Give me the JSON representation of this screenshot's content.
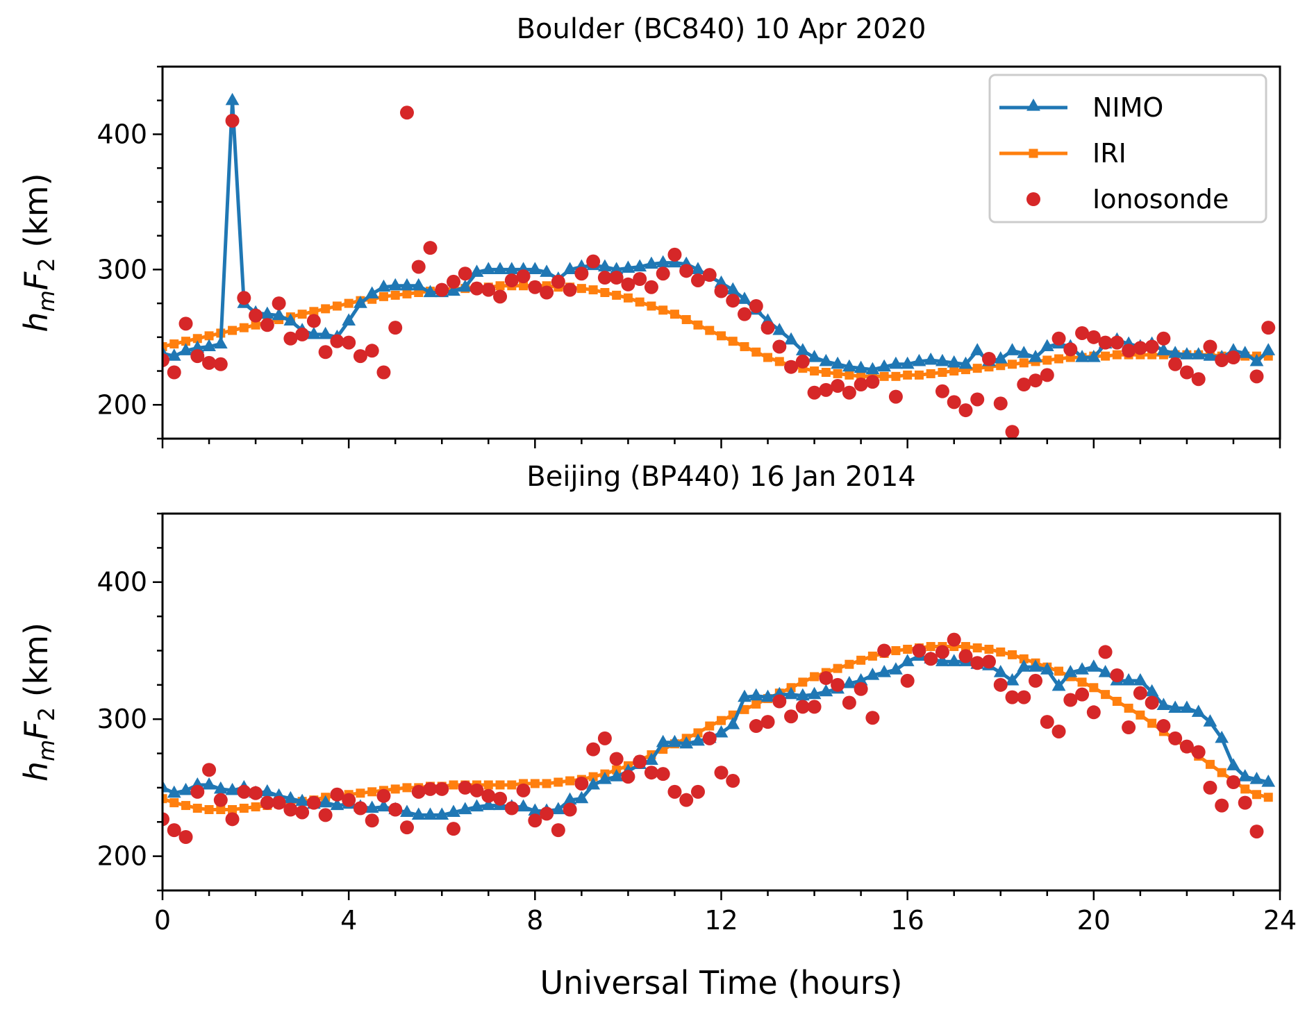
{
  "chart_data": [
    {
      "type": "line",
      "title": "Boulder (BC840) 10 Apr 2020",
      "xlabel": "",
      "ylabel": "h_mF_2 (km)",
      "ylabel_parts": {
        "main": "h",
        "sub1": "m",
        "mid": "F",
        "sub2": "2",
        "unit": " (km)"
      },
      "xlim": [
        0,
        24
      ],
      "ylim": [
        175,
        450
      ],
      "xticks": [
        0,
        4,
        8,
        12,
        16,
        20,
        24
      ],
      "xtick_labels": [
        "",
        "",
        "",
        "",
        "",
        "",
        ""
      ],
      "x_minor_step": 1,
      "yticks": [
        200,
        300,
        400
      ],
      "ytick_labels": [
        "200",
        "300",
        "400"
      ],
      "y_minor_step": 25,
      "grid": false,
      "legend": {
        "placement": "top-right",
        "entries": [
          "NIMO",
          "IRI",
          "Ionosonde"
        ]
      },
      "x_step_hours": 0.25,
      "x_start": 0,
      "series": [
        {
          "name": "NIMO",
          "color": "#1f77b4",
          "marker": "triangle",
          "line": true,
          "values": [
            238,
            236,
            240,
            242,
            243,
            245,
            425,
            275,
            268,
            267,
            266,
            262,
            255,
            252,
            252,
            250,
            262,
            275,
            282,
            287,
            288,
            288,
            288,
            283,
            283,
            284,
            287,
            298,
            300,
            300,
            300,
            300,
            300,
            298,
            293,
            300,
            302,
            303,
            302,
            300,
            301,
            302,
            304,
            305,
            305,
            304,
            300,
            295,
            290,
            285,
            278,
            270,
            262,
            255,
            248,
            240,
            235,
            232,
            230,
            228,
            227,
            226,
            228,
            230,
            230,
            232,
            233,
            232,
            231,
            230,
            240,
            232,
            234,
            240,
            238,
            235,
            243,
            245,
            243,
            235,
            235,
            245,
            248,
            245,
            243,
            245,
            240,
            238,
            237,
            237,
            236,
            235,
            240,
            238,
            232,
            240
          ]
        },
        {
          "name": "IRI",
          "color": "#ff7f0e",
          "marker": "square",
          "line": true,
          "values": [
            243,
            245,
            247,
            249,
            251,
            253,
            255,
            257,
            259,
            261,
            263,
            265,
            267,
            269,
            271,
            273,
            275,
            277,
            278,
            280,
            281,
            282,
            283,
            284,
            285,
            286,
            286,
            287,
            287,
            288,
            288,
            288,
            288,
            288,
            287,
            287,
            286,
            285,
            283,
            281,
            279,
            276,
            273,
            270,
            267,
            263,
            259,
            255,
            251,
            247,
            243,
            239,
            235,
            232,
            229,
            227,
            225,
            224,
            223,
            222,
            221,
            221,
            221,
            221,
            222,
            222,
            223,
            224,
            225,
            226,
            227,
            228,
            229,
            230,
            231,
            232,
            233,
            234,
            235,
            235,
            236,
            236,
            237,
            237,
            237,
            237,
            237,
            237,
            237,
            237,
            237,
            236,
            236,
            236,
            236,
            236
          ]
        },
        {
          "name": "Ionosonde",
          "color": "#d62728",
          "marker": "circle",
          "line": false,
          "values": [
            233,
            224,
            260,
            236,
            231,
            230,
            410,
            279,
            266,
            259,
            275,
            249,
            252,
            262,
            239,
            247,
            246,
            236,
            240,
            224,
            257,
            416,
            302,
            316,
            285,
            291,
            297,
            286,
            285,
            280,
            292,
            295,
            287,
            283,
            291,
            285,
            297,
            306,
            294,
            294,
            289,
            293,
            287,
            297,
            311,
            299,
            292,
            296,
            284,
            277,
            267,
            273,
            257,
            243,
            228,
            232,
            209,
            211,
            214,
            209,
            215,
            217,
            null,
            206,
            null,
            null,
            null,
            210,
            202,
            196,
            204,
            234,
            201,
            180,
            215,
            218,
            222,
            249,
            241,
            253,
            250,
            246,
            246,
            240,
            242,
            243,
            249,
            230,
            224,
            219,
            243,
            233,
            235,
            null,
            221,
            257
          ]
        }
      ]
    },
    {
      "type": "line",
      "title": "Beijing (BP440) 16 Jan 2014",
      "xlabel": "Universal Time (hours)",
      "ylabel": "h_mF_2 (km)",
      "ylabel_parts": {
        "main": "h",
        "sub1": "m",
        "mid": "F",
        "sub2": "2",
        "unit": " (km)"
      },
      "xlim": [
        0,
        24
      ],
      "ylim": [
        175,
        450
      ],
      "xticks": [
        0,
        4,
        8,
        12,
        16,
        20,
        24
      ],
      "xtick_labels": [
        "0",
        "4",
        "8",
        "12",
        "16",
        "20",
        "24"
      ],
      "x_minor_step": 1,
      "yticks": [
        200,
        300,
        400
      ],
      "ytick_labels": [
        "200",
        "300",
        "400"
      ],
      "y_minor_step": 25,
      "grid": false,
      "x_step_hours": 0.25,
      "x_start": 0,
      "series": [
        {
          "name": "NIMO",
          "color": "#1f77b4",
          "marker": "triangle",
          "line": true,
          "values": [
            250,
            246,
            248,
            252,
            252,
            249,
            248,
            250,
            246,
            247,
            244,
            242,
            240,
            238,
            239,
            237,
            238,
            236,
            235,
            236,
            234,
            232,
            230,
            230,
            230,
            232,
            234,
            236,
            237,
            237,
            236,
            236,
            233,
            233,
            234,
            241,
            242,
            252,
            256,
            258,
            262,
            267,
            270,
            283,
            283,
            282,
            284,
            286,
            290,
            296,
            316,
            317,
            316,
            318,
            318,
            317,
            318,
            320,
            322,
            326,
            328,
            332,
            334,
            336,
            342,
            346,
            344,
            342,
            342,
            342,
            340,
            339,
            334,
            328,
            338,
            338,
            336,
            324,
            334,
            336,
            338,
            334,
            328,
            328,
            328,
            320,
            310,
            308,
            308,
            305,
            298,
            286,
            266,
            258,
            256,
            254
          ]
        },
        {
          "name": "IRI",
          "color": "#ff7f0e",
          "marker": "square",
          "line": true,
          "values": [
            242,
            239,
            237,
            235,
            234,
            234,
            234,
            235,
            236,
            237,
            238,
            239,
            240,
            241,
            243,
            244,
            245,
            246,
            247,
            248,
            249,
            250,
            250,
            251,
            251,
            252,
            252,
            252,
            252,
            252,
            252,
            253,
            253,
            253,
            254,
            255,
            256,
            258,
            260,
            263,
            266,
            270,
            274,
            278,
            282,
            286,
            290,
            295,
            299,
            303,
            307,
            311,
            315,
            319,
            323,
            327,
            331,
            334,
            337,
            340,
            343,
            346,
            348,
            350,
            351,
            352,
            353,
            353,
            353,
            353,
            352,
            351,
            349,
            347,
            344,
            341,
            338,
            335,
            331,
            327,
            323,
            318,
            313,
            308,
            303,
            297,
            291,
            285,
            279,
            273,
            267,
            261,
            255,
            249,
            245,
            243
          ]
        },
        {
          "name": "Ionosonde",
          "color": "#d62728",
          "marker": "circle",
          "line": false,
          "values": [
            227,
            219,
            214,
            247,
            263,
            241,
            227,
            247,
            246,
            239,
            239,
            234,
            232,
            239,
            230,
            245,
            241,
            235,
            226,
            244,
            234,
            221,
            247,
            249,
            249,
            220,
            250,
            248,
            244,
            242,
            235,
            248,
            226,
            231,
            219,
            234,
            253,
            278,
            286,
            271,
            258,
            269,
            261,
            260,
            247,
            241,
            247,
            286,
            261,
            255,
            null,
            295,
            298,
            313,
            302,
            309,
            309,
            330,
            325,
            312,
            322,
            301,
            350,
            null,
            328,
            350,
            344,
            349,
            358,
            346,
            341,
            342,
            325,
            316,
            316,
            328,
            298,
            291,
            314,
            318,
            305,
            349,
            332,
            294,
            319,
            312,
            295,
            286,
            280,
            276,
            250,
            237,
            254,
            239,
            218,
            null
          ]
        }
      ]
    }
  ],
  "legend": {
    "items": [
      {
        "label": "NIMO",
        "color": "#1f77b4",
        "marker": "triangle"
      },
      {
        "label": "IRI",
        "color": "#ff7f0e",
        "marker": "square"
      },
      {
        "label": "Ionosonde",
        "color": "#d62728",
        "marker": "circle"
      }
    ]
  }
}
